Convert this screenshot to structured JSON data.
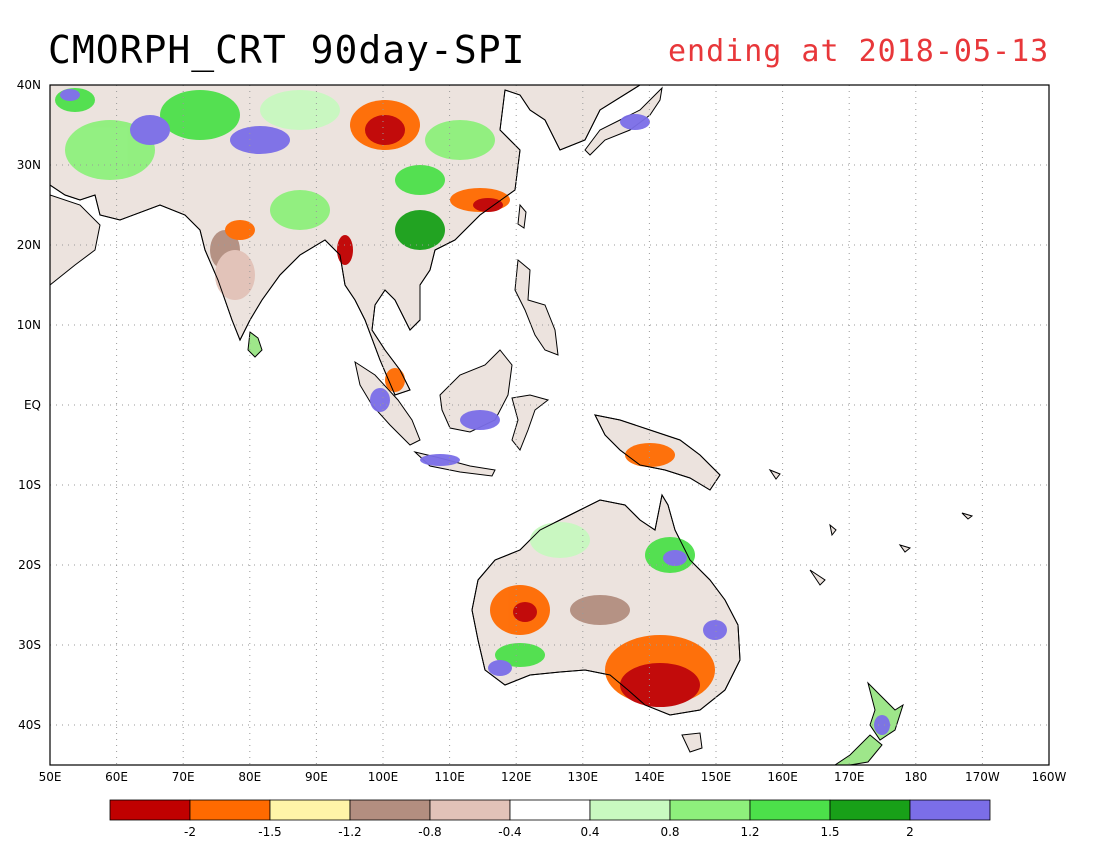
{
  "title": "CMORPH_CRT 90day-SPI",
  "subtitle": "ending at 2018-05-13",
  "map": {
    "lon_labels": [
      "50E",
      "60E",
      "70E",
      "80E",
      "90E",
      "100E",
      "110E",
      "120E",
      "130E",
      "140E",
      "150E",
      "160E",
      "170E",
      "180",
      "170W",
      "160W"
    ],
    "lat_labels": [
      "40N",
      "30N",
      "20N",
      "10N",
      "EQ",
      "10S",
      "20S",
      "30S",
      "40S"
    ]
  },
  "legend": {
    "colors": [
      "#c00000",
      "#ff6a00",
      "#fff5a8",
      "#b38e80",
      "#e2c2b8",
      "#ffffff",
      "#c8f9c0",
      "#8ef07c",
      "#4ce04a",
      "#18a018",
      "#7b6ee8"
    ],
    "labels": [
      "-2",
      "-1.5",
      "-1.2",
      "-0.8",
      "-0.4",
      "0.4",
      "0.8",
      "1.2",
      "1.5",
      "2"
    ]
  },
  "colors": {
    "coast": "#000000",
    "grid": "#9a9a9a",
    "title": "#000000",
    "subtitle": "#e8373a"
  }
}
